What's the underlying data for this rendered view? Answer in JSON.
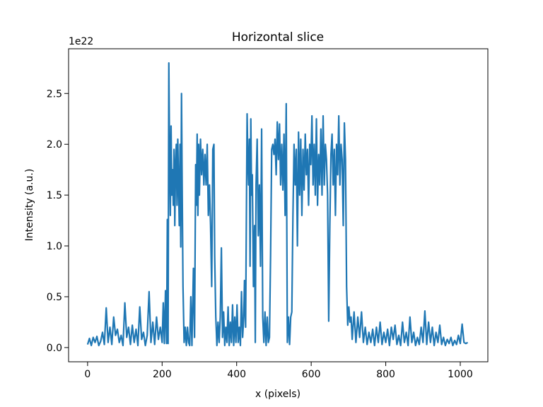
{
  "chart_data": {
    "type": "line",
    "title": "Horizontal slice",
    "xlabel": "x (pixels)",
    "ylabel": "Intensity (a.u.)",
    "y_offset_label": "1e22",
    "x": [
      0,
      5,
      10,
      15,
      20,
      25,
      30,
      35,
      40,
      45,
      50,
      55,
      60,
      65,
      70,
      75,
      80,
      85,
      90,
      95,
      100,
      105,
      110,
      115,
      120,
      125,
      130,
      135,
      140,
      145,
      150,
      155,
      160,
      165,
      170,
      175,
      180,
      185,
      190,
      195,
      200,
      203,
      206,
      209,
      212,
      214,
      216,
      218,
      220,
      222,
      224,
      226,
      228,
      230,
      232,
      234,
      236,
      238,
      240,
      242,
      244,
      246,
      248,
      250,
      252,
      254,
      256,
      259,
      262,
      265,
      268,
      271,
      274,
      277,
      280,
      284,
      287,
      290,
      292,
      294,
      296,
      298,
      300,
      303,
      306,
      309,
      312,
      315,
      318,
      321,
      324,
      327,
      330,
      333,
      336,
      339,
      341,
      344,
      347,
      350,
      353,
      356,
      359,
      362,
      365,
      368,
      371,
      374,
      377,
      380,
      383,
      386,
      389,
      392,
      395,
      398,
      401,
      404,
      407,
      410,
      413,
      416,
      419,
      421,
      424,
      428,
      430,
      432,
      434,
      436,
      438,
      440,
      442,
      445,
      448,
      450,
      452,
      455,
      458,
      461,
      464,
      467,
      470,
      473,
      476,
      479,
      482,
      485,
      488,
      491,
      494,
      497,
      500,
      503,
      506,
      509,
      512,
      515,
      518,
      521,
      524,
      527,
      530,
      533,
      536,
      539,
      542,
      545,
      548,
      551,
      554,
      557,
      560,
      563,
      566,
      569,
      572,
      575,
      578,
      581,
      584,
      587,
      590,
      593,
      596,
      599,
      602,
      605,
      608,
      611,
      614,
      617,
      620,
      623,
      626,
      629,
      632,
      635,
      638,
      641,
      644,
      647,
      650,
      653,
      656,
      659,
      662,
      665,
      668,
      671,
      674,
      677,
      680,
      683,
      686,
      689,
      692,
      695,
      698,
      701,
      704,
      707,
      710,
      715,
      720,
      725,
      730,
      735,
      740,
      745,
      750,
      755,
      760,
      765,
      770,
      775,
      780,
      785,
      790,
      795,
      800,
      805,
      810,
      815,
      820,
      825,
      830,
      835,
      840,
      845,
      850,
      855,
      860,
      865,
      870,
      875,
      880,
      885,
      890,
      895,
      900,
      905,
      910,
      915,
      920,
      925,
      930,
      935,
      940,
      945,
      950,
      955,
      960,
      965,
      970,
      975,
      980,
      985,
      990,
      995,
      1000,
      1005,
      1010,
      1015,
      1020
    ],
    "values": [
      0.03,
      0.09,
      0.02,
      0.1,
      0.05,
      0.11,
      0.02,
      0.06,
      0.15,
      0.03,
      0.39,
      0.05,
      0.2,
      0.03,
      0.3,
      0.12,
      0.18,
      0.05,
      0.12,
      0.02,
      0.44,
      0.1,
      0.2,
      0.03,
      0.22,
      0.05,
      0.18,
      0.02,
      0.4,
      0.08,
      0.15,
      0.02,
      0.12,
      0.55,
      0.05,
      0.25,
      0.03,
      0.3,
      0.08,
      0.2,
      0.05,
      0.44,
      0.04,
      0.56,
      0.04,
      1.26,
      0.04,
      2.8,
      1.9,
      1.3,
      2.18,
      1.5,
      1.75,
      1.4,
      1.95,
      1.2,
      1.8,
      2.0,
      1.4,
      2.05,
      1.6,
      1.2,
      2.0,
      0.99,
      2.5,
      1.5,
      0.6,
      0.05,
      0.2,
      0.02,
      0.2,
      0.05,
      0.02,
      0.5,
      0.02,
      0.78,
      0.1,
      1.8,
      1.4,
      2.1,
      1.3,
      2.0,
      1.5,
      2.05,
      1.7,
      1.95,
      1.6,
      1.9,
      1.6,
      2.0,
      1.3,
      1.6,
      1.2,
      0.6,
      1.95,
      2.0,
      0.9,
      0.3,
      0.02,
      0.25,
      0.05,
      0.3,
      0.98,
      0.1,
      0.35,
      0.02,
      0.2,
      0.05,
      0.4,
      0.02,
      0.25,
      0.05,
      0.42,
      0.02,
      0.3,
      0.05,
      0.42,
      0.05,
      0.2,
      0.02,
      0.55,
      0.1,
      0.3,
      0.66,
      0.2,
      2.3,
      1.85,
      1.6,
      2.05,
      0.8,
      2.25,
      1.5,
      1.7,
      0.6,
      1.2,
      0.05,
      1.6,
      2.05,
      1.1,
      1.6,
      0.8,
      2.15,
      0.3,
      0.05,
      0.35,
      0.02,
      0.3,
      0.05,
      0.1,
      0.9,
      1.95,
      2.0,
      1.9,
      2.05,
      1.7,
      2.22,
      1.85,
      2.2,
      1.6,
      2.0,
      1.55,
      2.1,
      1.3,
      2.4,
      0.05,
      0.3,
      0.03,
      0.3,
      0.35,
      1.3,
      2.0,
      1.6,
      1.95,
      1.0,
      2.12,
      1.5,
      2.05,
      1.3,
      1.95,
      1.55,
      2.1,
      1.7,
      1.95,
      1.4,
      2.0,
      1.8,
      2.28,
      1.6,
      2.0,
      1.5,
      2.25,
      1.4,
      1.9,
      1.6,
      2.15,
      1.5,
      2.28,
      1.6,
      2.0,
      1.85,
      1.5,
      0.26,
      1.2,
      1.9,
      2.1,
      1.6,
      1.95,
      1.3,
      2.0,
      1.7,
      2.28,
      1.6,
      2.0,
      1.85,
      1.2,
      2.21,
      1.85,
      0.6,
      0.22,
      0.4,
      0.25,
      0.3,
      0.08,
      0.35,
      0.05,
      0.3,
      0.1,
      0.35,
      0.05,
      0.2,
      0.03,
      0.15,
      0.05,
      0.18,
      0.02,
      0.2,
      0.05,
      0.25,
      0.03,
      0.15,
      0.05,
      0.18,
      0.02,
      0.2,
      0.08,
      0.22,
      0.03,
      0.12,
      0.02,
      0.25,
      0.05,
      0.15,
      0.02,
      0.3,
      0.05,
      0.15,
      0.02,
      0.1,
      0.03,
      0.2,
      0.05,
      0.36,
      0.03,
      0.25,
      0.05,
      0.2,
      0.02,
      0.15,
      0.05,
      0.22,
      0.03,
      0.1,
      0.02,
      0.08,
      0.04,
      0.1,
      0.02,
      0.07,
      0.03,
      0.12,
      0.04,
      0.23,
      0.05,
      0.04,
      0.05
    ],
    "color": "#1f77b4",
    "xlim": [
      -51,
      1074
    ],
    "ylim": [
      -0.14,
      2.94
    ],
    "xticks": [
      0,
      200,
      400,
      600,
      800,
      1000
    ],
    "yticks": [
      {
        "value": 0,
        "label": "0.0"
      },
      0.5,
      {
        "value": 1,
        "label": "1.0"
      },
      1.5,
      {
        "value": 2,
        "label": "2.0"
      },
      2.5
    ]
  }
}
